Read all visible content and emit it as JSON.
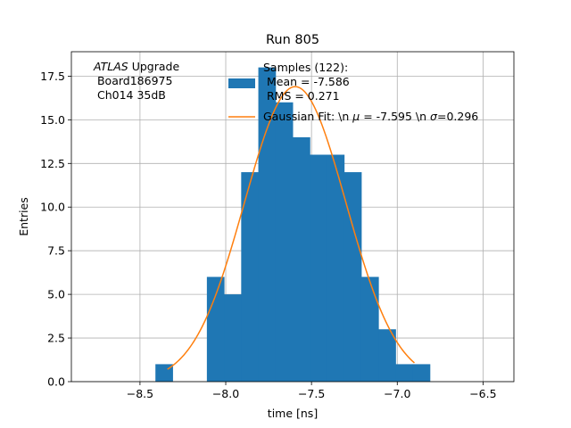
{
  "chart_data": {
    "type": "bar",
    "title": "Run 805",
    "xlabel": "time [ns]",
    "ylabel": "Entries",
    "xlim": [
      -8.9,
      -6.32
    ],
    "ylim": [
      0,
      18.9
    ],
    "grid": true,
    "xticks": [
      -8.5,
      -8.0,
      -7.5,
      -7.0,
      -6.5
    ],
    "xtick_labels": [
      "−8.5",
      "−8.0",
      "−7.5",
      "−7.0",
      "−6.5"
    ],
    "yticks": [
      0.0,
      2.5,
      5.0,
      7.5,
      10.0,
      12.5,
      15.0,
      17.5
    ],
    "ytick_labels": [
      "0.0",
      "2.5",
      "5.0",
      "7.5",
      "10.0",
      "12.5",
      "15.0",
      "17.5"
    ],
    "bar_color": "#1f77b4",
    "fit_color": "#ff7f0e",
    "bin_edges": [
      -8.41,
      -8.31,
      -8.21,
      -8.11,
      -8.01,
      -7.91,
      -7.81,
      -7.71,
      -7.61,
      -7.51,
      -7.41,
      -7.31,
      -7.21,
      -7.11,
      -7.01,
      -6.91,
      -6.81
    ],
    "counts": [
      1,
      0,
      0,
      6,
      5,
      12,
      18,
      16,
      14,
      13,
      13,
      12,
      6,
      3,
      1,
      1
    ],
    "fit": {
      "label": "Gaussian Fit: \\n $\\mu$ = -7.595 \\n $\\sigma$=0.296",
      "label_prefix": "Gaussian Fit: \\n ",
      "mu_symbol": "μ",
      "label_middle": " = -7.595 \\n ",
      "sigma_symbol": "σ",
      "label_suffix": "=0.296",
      "mu": -7.595,
      "sigma": 0.296,
      "amplitude": 16.9,
      "x_range": [
        -8.34,
        -6.9
      ]
    },
    "legend": {
      "placement": "upper center",
      "samples_line1": "Samples (122):",
      "samples_line2": " Mean = -7.586",
      "samples_line3": " RMS = 0.271"
    },
    "annotation": {
      "atlas": "ATLAS",
      "upgrade": " Upgrade",
      "line2": " Board186975",
      "line3": " Ch014 35dB"
    }
  }
}
